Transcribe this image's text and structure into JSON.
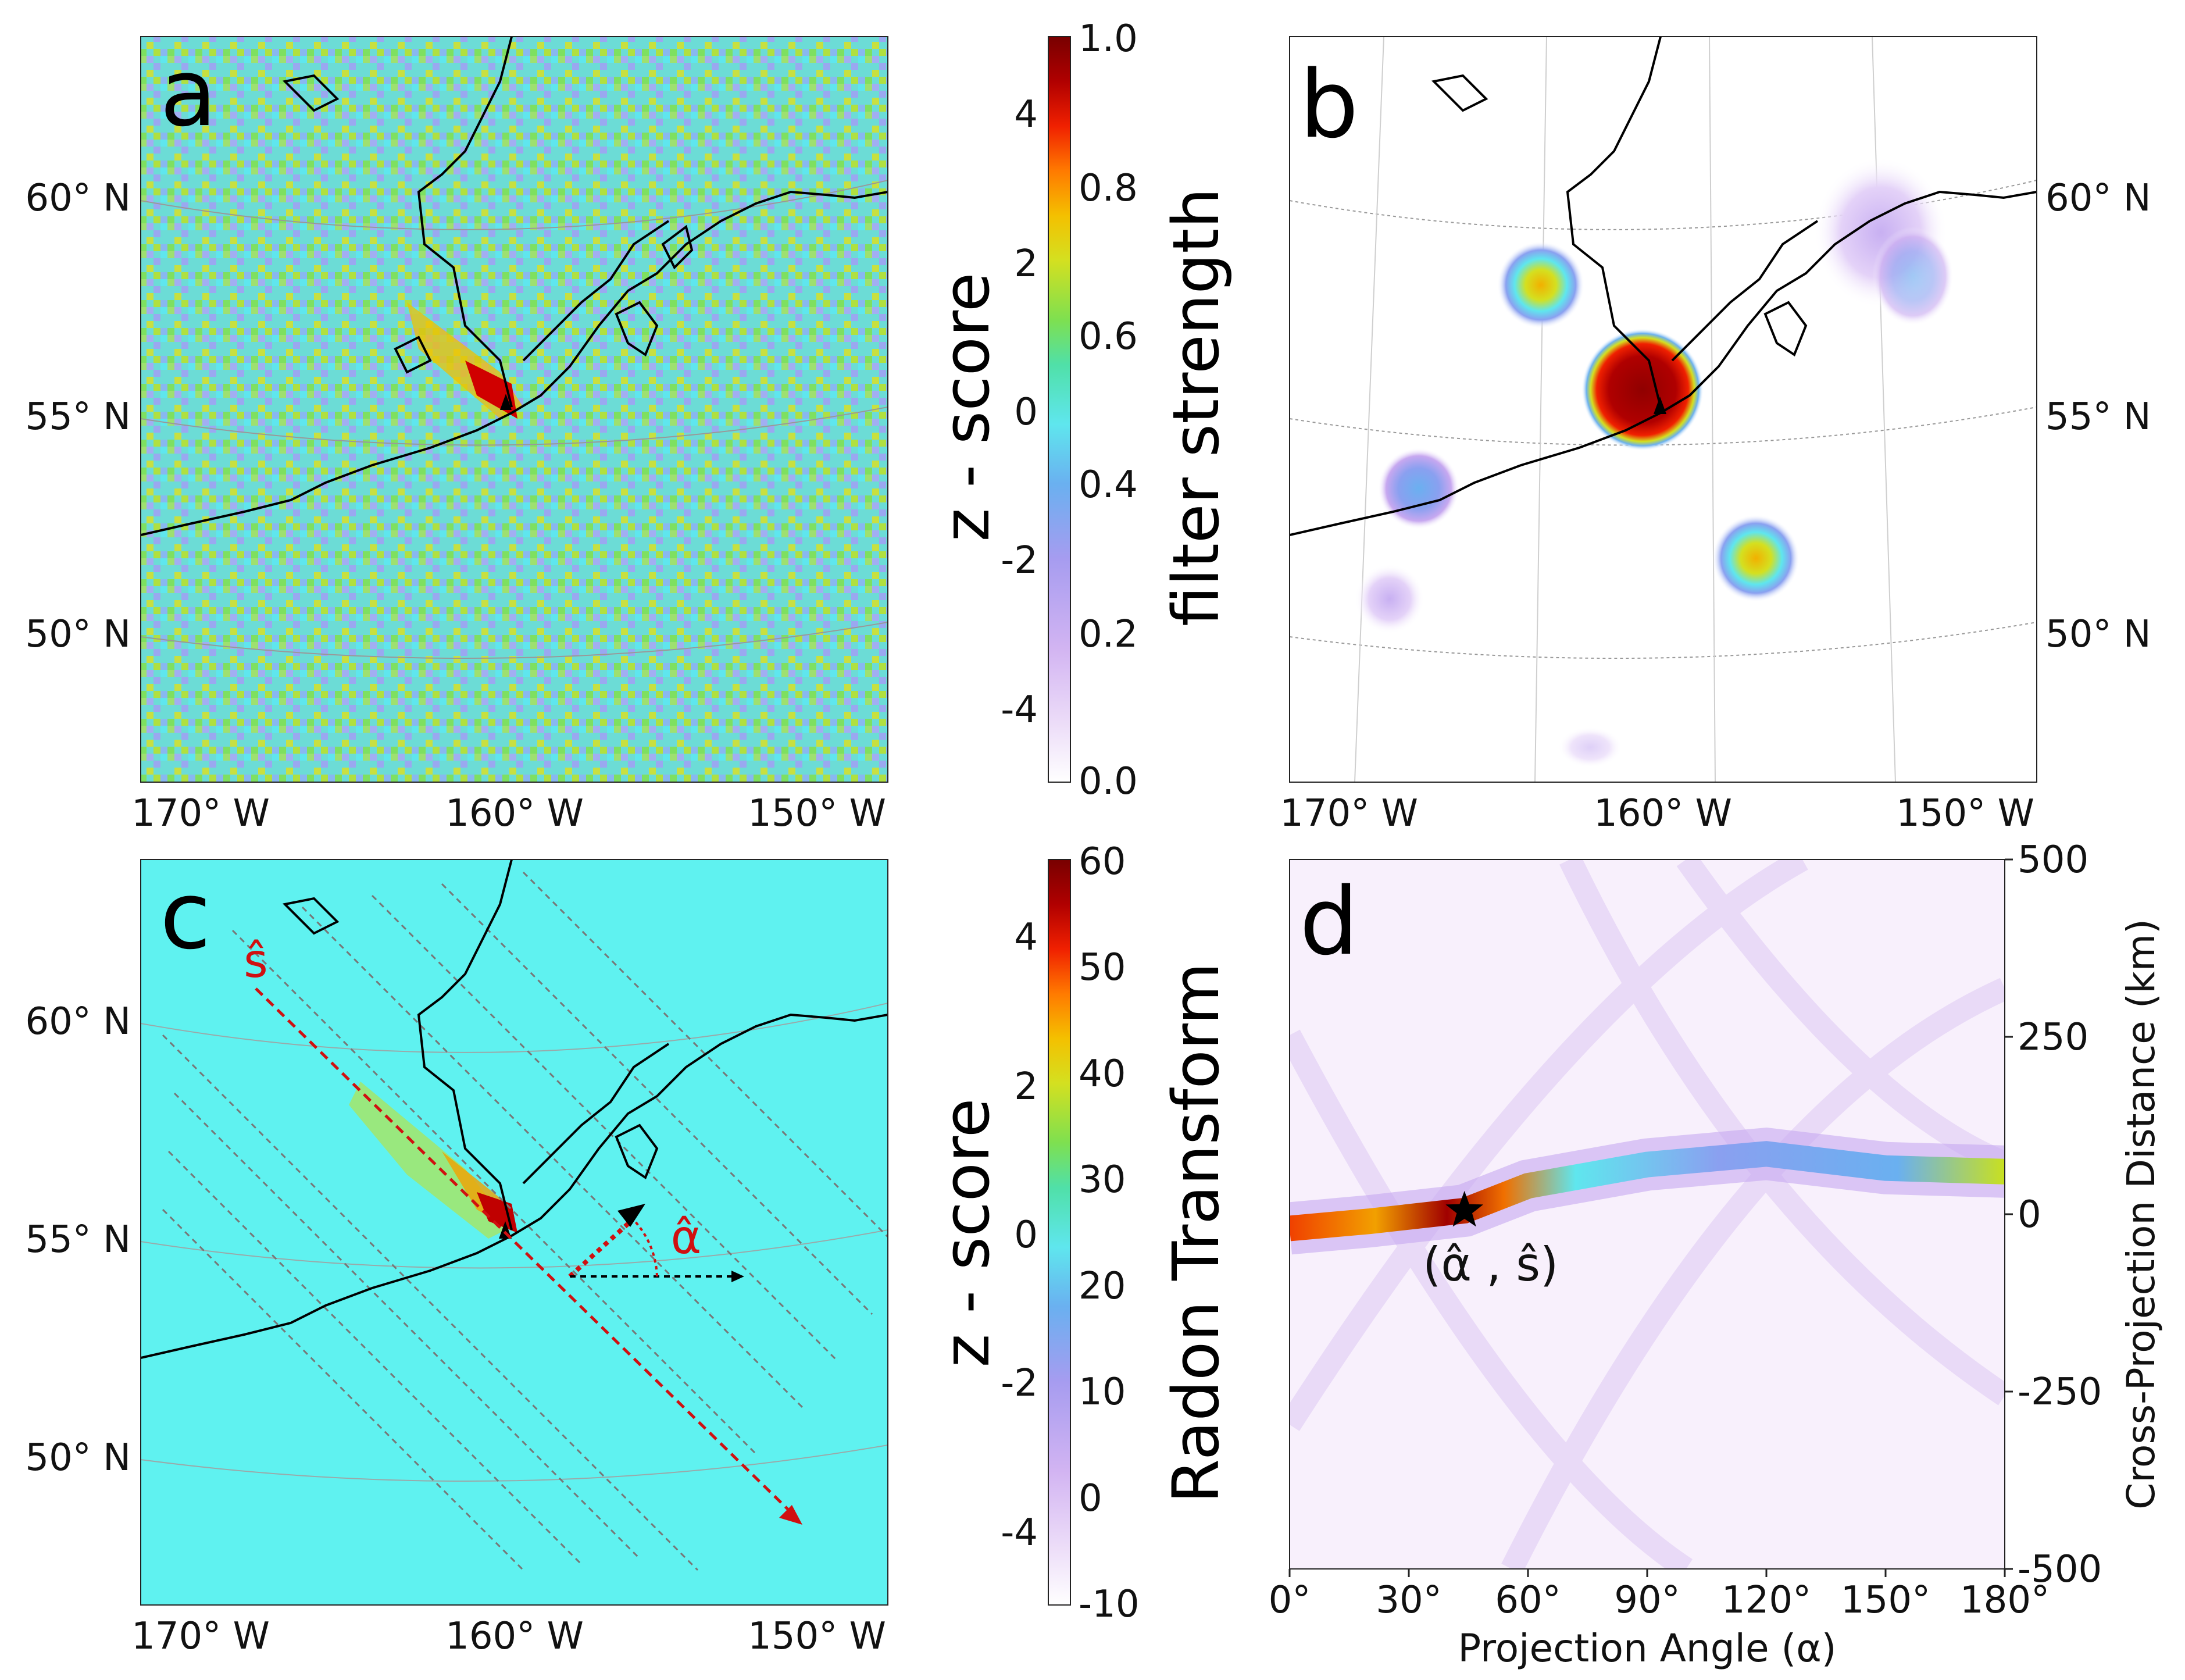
{
  "colors": {
    "cmap": [
      "#ffffff",
      "#e8d6f8",
      "#c7a8f0",
      "#8aa0f0",
      "#5fe6ee",
      "#4be0c8",
      "#78e050",
      "#c8e020",
      "#f2c000",
      "#ff7a00",
      "#ee1c00",
      "#a00000",
      "#780000"
    ],
    "coast": "#000000",
    "red_annotation": "#d01010",
    "panel_c_bg": "#5ff2f0",
    "panel_a_bg": "#6edfd8"
  },
  "panels": {
    "a": {
      "letter": "a"
    },
    "b": {
      "letter": "b"
    },
    "c": {
      "letter": "c",
      "s_hat": "ŝ",
      "alpha_hat": "α̂"
    },
    "d": {
      "letter": "d",
      "point_label": "(α̂ , ŝ)"
    }
  },
  "map_axes": {
    "lat_labels": [
      "60° N",
      "55° N",
      "50° N"
    ],
    "lon_labels": [
      "170° W",
      "160° W",
      "150° W"
    ]
  },
  "colorbar_top": {
    "left_label": "z - score",
    "right_label": "filter strength",
    "left_ticks": [
      "4",
      "2",
      "0",
      "-2",
      "-4"
    ],
    "right_ticks": [
      "1.0",
      "0.8",
      "0.6",
      "0.4",
      "0.2",
      "0.0"
    ]
  },
  "colorbar_bottom": {
    "left_label": "z - score",
    "right_label": "Radon Transform",
    "left_ticks": [
      "4",
      "2",
      "0",
      "-2",
      "-4"
    ],
    "right_ticks": [
      "60",
      "50",
      "40",
      "30",
      "20",
      "10",
      "0",
      "-10"
    ]
  },
  "chart_data": [
    {
      "type": "heatmap",
      "panel": "a",
      "description_values": "z-score map over Alaska Peninsula, values within about -5 to 5; elevated band along the Alaska-Aleutian arc near 56N 159W",
      "xlabel": "",
      "ylabel": "",
      "x_ticks": [
        "170° W",
        "160° W",
        "150° W"
      ],
      "y_ticks": [
        "60° N",
        "55° N",
        "50° N"
      ],
      "zlim": [
        -5,
        5
      ]
    },
    {
      "type": "heatmap",
      "panel": "b",
      "x_ticks": [
        "170° W",
        "160° W",
        "150° W"
      ],
      "y_ticks": [
        "60° N",
        "55° N",
        "50° N"
      ],
      "blobs": [
        {
          "lon": -159,
          "lat": 56,
          "strength": 1.0
        },
        {
          "lon": -163.5,
          "lat": 58,
          "strength": 0.75
        },
        {
          "lon": -155.5,
          "lat": 52,
          "strength": 0.7
        },
        {
          "lon": -167,
          "lat": 53.5,
          "strength": 0.4
        },
        {
          "lon": -150.5,
          "lat": 59.5,
          "strength": 0.35
        },
        {
          "lon": -169,
          "lat": 50.5,
          "strength": 0.15
        }
      ],
      "zlim": [
        0.0,
        1.0
      ]
    },
    {
      "type": "heatmap",
      "panel": "c",
      "x_ticks": [
        "170° W",
        "160° W",
        "150° W"
      ],
      "y_ticks": [
        "60° N",
        "55° N",
        "50° N"
      ],
      "zlim": [
        -5,
        5
      ]
    },
    {
      "type": "heatmap",
      "panel": "d",
      "xlabel": "Projection Angle (α)",
      "ylabel": "Cross-Projection Distance (km)",
      "x_ticks": [
        "0°",
        "30°",
        "60°",
        "90°",
        "120°",
        "150°",
        "180°"
      ],
      "x_tick_values": [
        0,
        30,
        60,
        90,
        120,
        150,
        180
      ],
      "y_ticks": [
        "500",
        "250",
        "0",
        "-250",
        "-500"
      ],
      "y_tick_values": [
        500,
        250,
        0,
        -250,
        -500
      ],
      "xlim": [
        0,
        180
      ],
      "ylim": [
        -500,
        500
      ],
      "zlim": [
        -10,
        60
      ],
      "ridge": [
        {
          "angle": 0,
          "distance": -20,
          "value": 50
        },
        {
          "angle": 20,
          "distance": -10,
          "value": 55
        },
        {
          "angle": 44,
          "distance": 5,
          "value": 60
        },
        {
          "angle": 60,
          "distance": 40,
          "value": 40
        },
        {
          "angle": 90,
          "distance": 70,
          "value": 22
        },
        {
          "angle": 120,
          "distance": 85,
          "value": 18
        },
        {
          "angle": 150,
          "distance": 65,
          "value": 20
        },
        {
          "angle": 180,
          "distance": 60,
          "value": 35
        }
      ],
      "max_point": {
        "angle": 44,
        "distance": 5
      }
    }
  ]
}
